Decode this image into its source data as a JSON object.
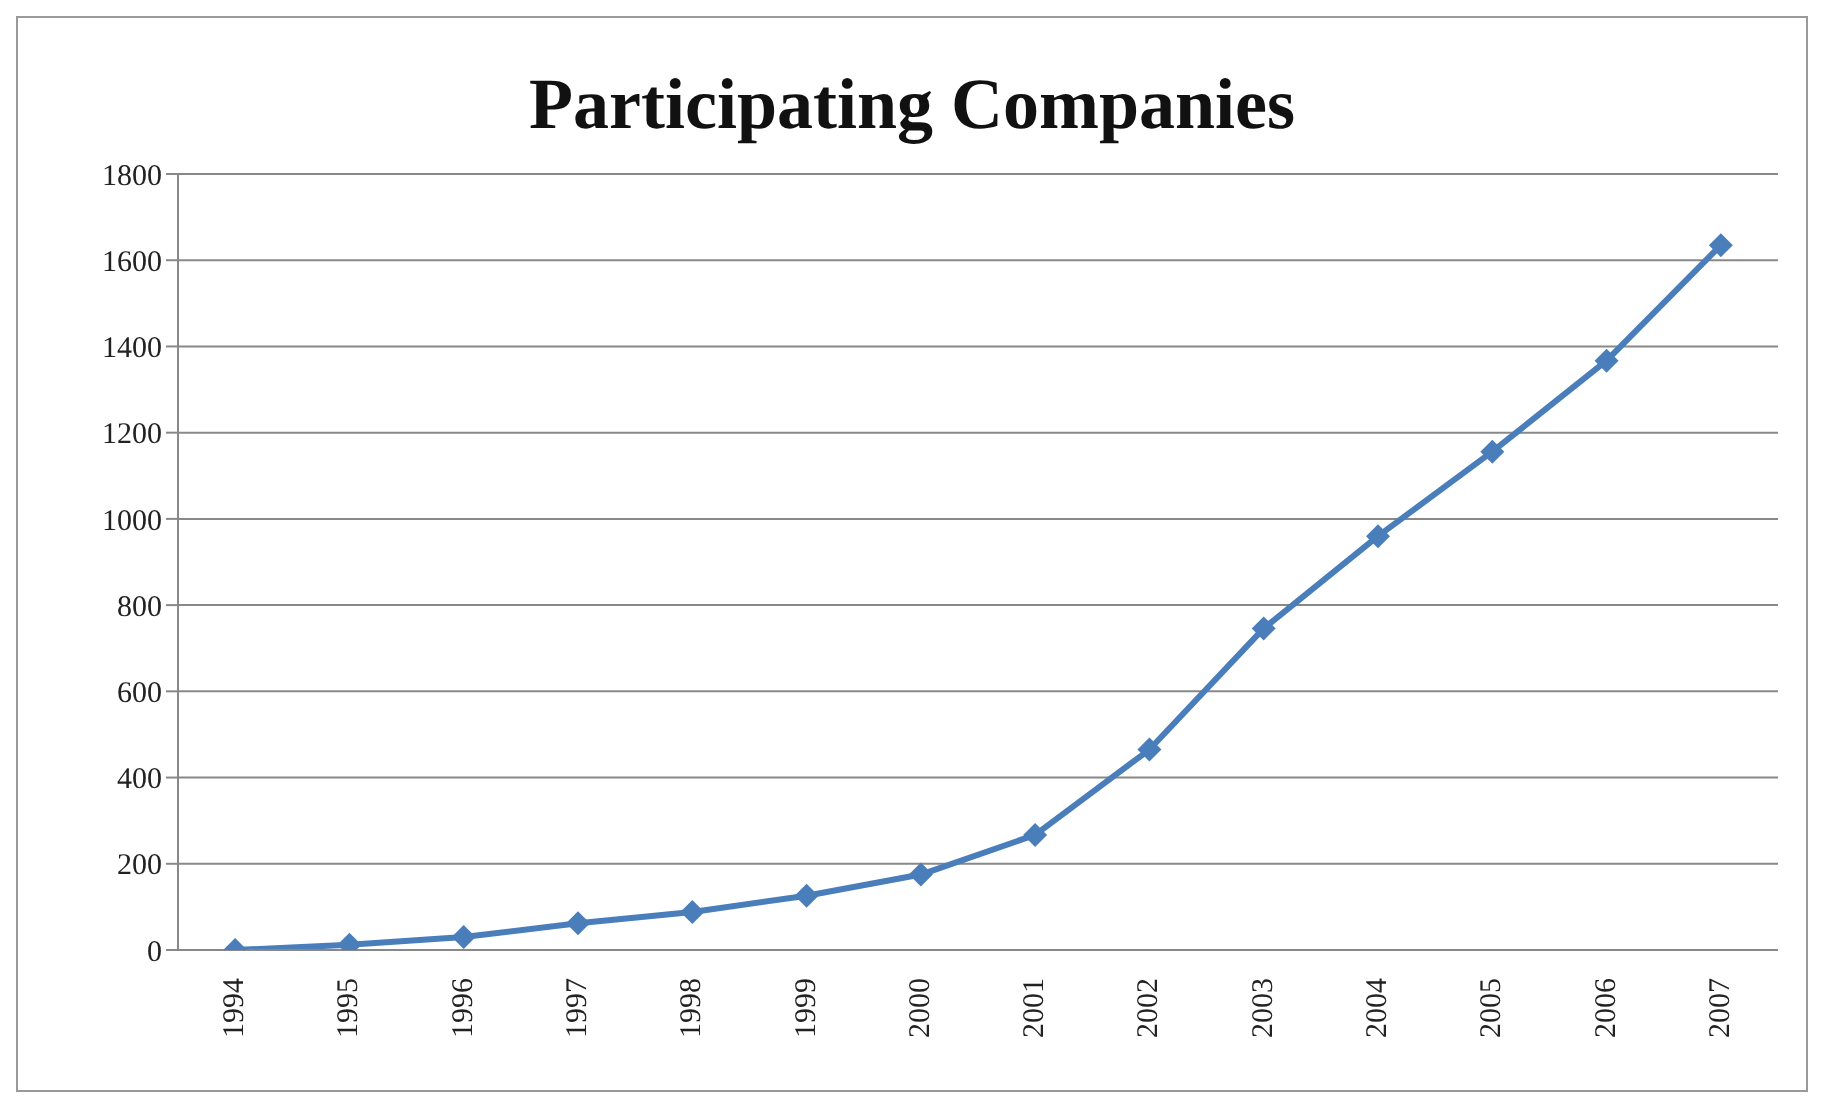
{
  "chart_data": {
    "type": "line",
    "title": "Participating Companies",
    "categories": [
      "1994",
      "1995",
      "1996",
      "1997",
      "1998",
      "1999",
      "2000",
      "2001",
      "2002",
      "2003",
      "2004",
      "2005",
      "2006",
      "2007"
    ],
    "series": [
      {
        "color": "#4a7ebb",
        "values": [
          0,
          12,
          30,
          62,
          88,
          126,
          175,
          267,
          465,
          746,
          960,
          1156,
          1367,
          1635
        ]
      }
    ],
    "ylim": [
      0,
      1800
    ],
    "yticks": [
      0,
      200,
      400,
      600,
      800,
      1000,
      1200,
      1400,
      1600,
      1800
    ],
    "grid": "y",
    "marker": "diamond",
    "line_style": "solid"
  }
}
